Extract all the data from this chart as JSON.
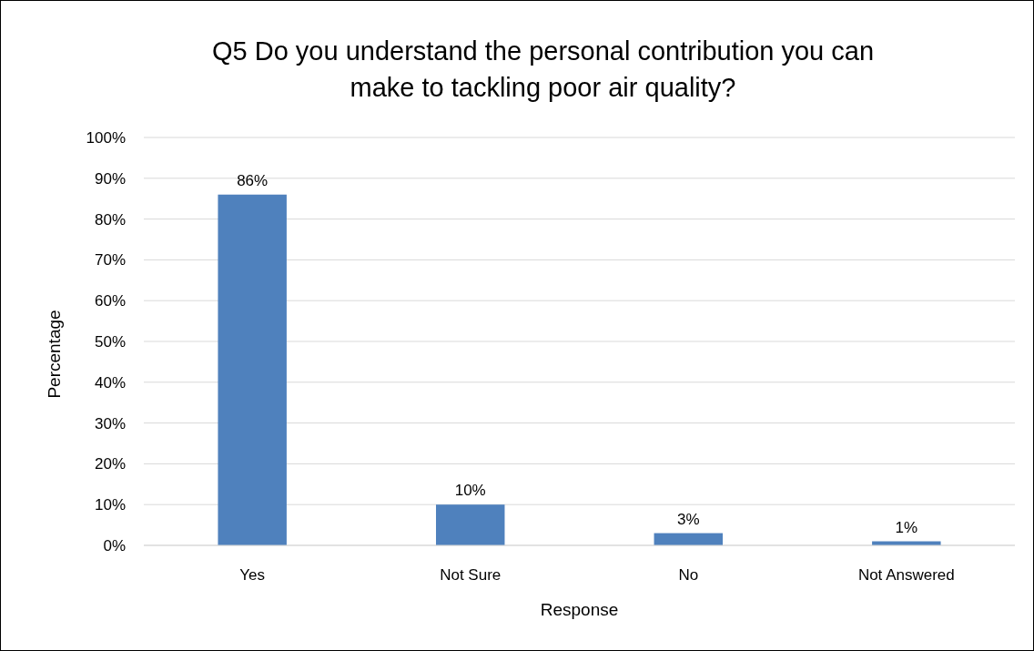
{
  "chart_data": {
    "type": "bar",
    "title": "Q5 Do you understand the personal contribution you can make to tackling poor air quality?",
    "xlabel": "Response",
    "ylabel": "Percentage",
    "categories": [
      "Yes",
      "Not Sure",
      "No",
      "Not Answered"
    ],
    "values": [
      86,
      10,
      3,
      1
    ],
    "value_labels": [
      "86%",
      "10%",
      "3%",
      "1%"
    ],
    "color": "#4f81bd",
    "ylim": [
      0,
      100
    ],
    "yticks": [
      {
        "value": 0,
        "label": "0%"
      },
      {
        "value": 10,
        "label": "10%"
      },
      {
        "value": 20,
        "label": "20%"
      },
      {
        "value": 30,
        "label": "30%"
      },
      {
        "value": 40,
        "label": "40%"
      },
      {
        "value": 50,
        "label": "50%"
      },
      {
        "value": 60,
        "label": "60%"
      },
      {
        "value": 70,
        "label": "70%"
      },
      {
        "value": 80,
        "label": "80%"
      },
      {
        "value": 90,
        "label": "90%"
      },
      {
        "value": 100,
        "label": "100%"
      }
    ],
    "grid": "y"
  }
}
